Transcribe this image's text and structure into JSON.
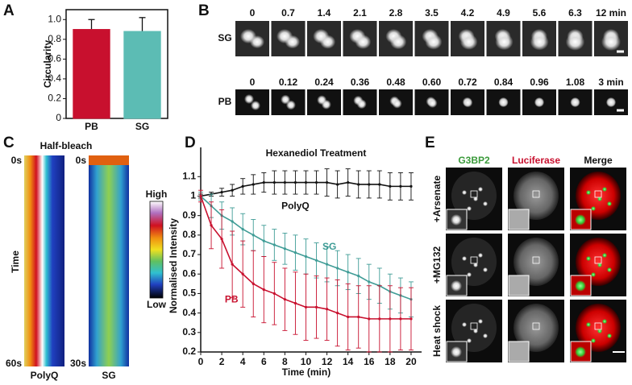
{
  "chart_data": [
    {
      "type": "bar",
      "panel": "A",
      "ylabel": "Circularity",
      "categories": [
        "PB",
        "SG"
      ],
      "values": [
        0.9,
        0.88
      ],
      "errors": [
        0.1,
        0.14
      ],
      "colors": [
        "#c8102e",
        "#5cbcb4"
      ],
      "ylim": [
        0,
        1.1
      ],
      "yticks": [
        0,
        0.2,
        0.4,
        0.6,
        0.8,
        {
          "value": 1,
          "label": "1.0"
        }
      ]
    },
    {
      "type": "line",
      "panel": "D",
      "title": "Hexanediol Treatment",
      "xlabel": "Time (min)",
      "ylabel": "Normalised Intensity",
      "x": [
        0,
        1,
        2,
        3,
        4,
        5,
        6,
        7,
        8,
        9,
        10,
        11,
        12,
        13,
        14,
        15,
        16,
        17,
        18,
        19,
        20
      ],
      "series": [
        {
          "name": "PolyQ",
          "color": "#111111",
          "values": [
            1.0,
            1.01,
            1.02,
            1.03,
            1.05,
            1.06,
            1.07,
            1.07,
            1.07,
            1.07,
            1.07,
            1.07,
            1.07,
            1.06,
            1.07,
            1.06,
            1.06,
            1.06,
            1.05,
            1.05,
            1.05
          ],
          "errors": [
            0.01,
            0.01,
            0.02,
            0.03,
            0.04,
            0.05,
            0.05,
            0.06,
            0.06,
            0.06,
            0.06,
            0.06,
            0.07,
            0.07,
            0.07,
            0.07,
            0.07,
            0.07,
            0.07,
            0.07,
            0.07
          ]
        },
        {
          "name": "SG",
          "color": "#3f9c96",
          "values": [
            1.0,
            0.95,
            0.9,
            0.87,
            0.83,
            0.8,
            0.77,
            0.75,
            0.73,
            0.71,
            0.69,
            0.67,
            0.65,
            0.63,
            0.61,
            0.59,
            0.56,
            0.54,
            0.51,
            0.49,
            0.47
          ],
          "errors": [
            0.02,
            0.06,
            0.07,
            0.07,
            0.08,
            0.08,
            0.08,
            0.08,
            0.08,
            0.09,
            0.09,
            0.09,
            0.09,
            0.09,
            0.09,
            0.09,
            0.09,
            0.09,
            0.09,
            0.09,
            0.09
          ]
        },
        {
          "name": "PB",
          "color": "#c8102e",
          "values": [
            1.0,
            0.85,
            0.78,
            0.65,
            0.6,
            0.55,
            0.52,
            0.5,
            0.47,
            0.45,
            0.43,
            0.43,
            0.42,
            0.4,
            0.38,
            0.38,
            0.37,
            0.37,
            0.37,
            0.37,
            0.37
          ],
          "errors": [
            0.03,
            0.12,
            0.15,
            0.17,
            0.17,
            0.17,
            0.17,
            0.16,
            0.16,
            0.16,
            0.17,
            0.16,
            0.16,
            0.17,
            0.17,
            0.16,
            0.17,
            0.17,
            0.17,
            0.16,
            0.16
          ]
        }
      ],
      "xlim": [
        0,
        21
      ],
      "xticks": [
        0,
        2,
        4,
        6,
        8,
        10,
        12,
        14,
        16,
        18,
        20
      ],
      "ylim": [
        0.2,
        1.25
      ],
      "yticks": [
        0.2,
        0.3,
        0.4,
        0.5,
        0.6,
        0.7,
        0.8,
        0.9,
        1,
        1.1
      ]
    }
  ],
  "panel_b": {
    "letter": "B",
    "rows": [
      {
        "label": "SG",
        "frames": [
          "0",
          "0.7",
          "1.4",
          "2.1",
          "2.8",
          "3.5",
          "4.2",
          "4.9",
          "5.6",
          "6.3",
          "12 min"
        ]
      },
      {
        "label": "PB",
        "frames": [
          "0",
          "0.12",
          "0.24",
          "0.36",
          "0.48",
          "0.60",
          "0.72",
          "0.84",
          "0.96",
          "1.08",
          "3 min"
        ]
      }
    ]
  },
  "panel_c": {
    "letter": "C",
    "title": "Half-bleach",
    "axis_label": "Time",
    "kymographs": [
      {
        "label": "PolyQ",
        "start": "0s",
        "end": "60s"
      },
      {
        "label": "SG",
        "start": "0s",
        "end": "30s"
      }
    ],
    "colorbar": {
      "high": "High",
      "low": "Low"
    }
  },
  "panel_e": {
    "letter": "E",
    "columns": [
      "G3BP2",
      "Luciferase",
      "Merge"
    ],
    "rows": [
      "+Arsenate",
      "+MG132",
      "Heat shock"
    ]
  }
}
